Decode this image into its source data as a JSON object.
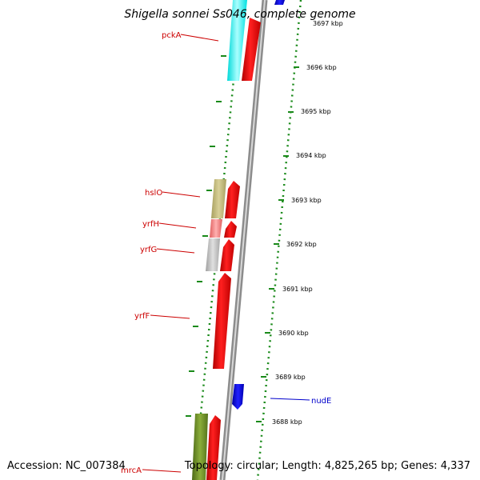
{
  "title": "Shigella sonnei Ss046, complete genome",
  "accession": "Accession: NC_007384",
  "summary": "Topology: circular; Length: 4,825,265 bp; Genes: 4,337",
  "ruler": {
    "unit": "kbp",
    "labels": [
      "3697 kbp",
      "3696 kbp",
      "3695 kbp",
      "3694 kbp",
      "3693 kbp",
      "3692 kbp",
      "3691 kbp",
      "3690 kbp",
      "3689 kbp",
      "3688 kbp"
    ]
  },
  "genes": [
    {
      "name": "pckA",
      "color": "#cc0000"
    },
    {
      "name": "hslO",
      "color": "#cc0000"
    },
    {
      "name": "yrfH",
      "color": "#cc0000"
    },
    {
      "name": "yrfG",
      "color": "#cc0000"
    },
    {
      "name": "yrfF",
      "color": "#cc0000"
    },
    {
      "name": "nudE",
      "color": "#0000cc"
    },
    {
      "name": "mrcA",
      "color": "#cc0000"
    }
  ],
  "colors": {
    "forward_gene": "#ff0000",
    "reverse_gene": "#0000ff",
    "backbone": "#9a9a9a",
    "tick": "#1a8a1a",
    "cog_cyan": "#00ffff",
    "cog_khaki": "#bdb76b",
    "cog_pink": "#f08080",
    "cog_gray": "#c0c0c0",
    "cog_olive": "#6b8e23"
  }
}
